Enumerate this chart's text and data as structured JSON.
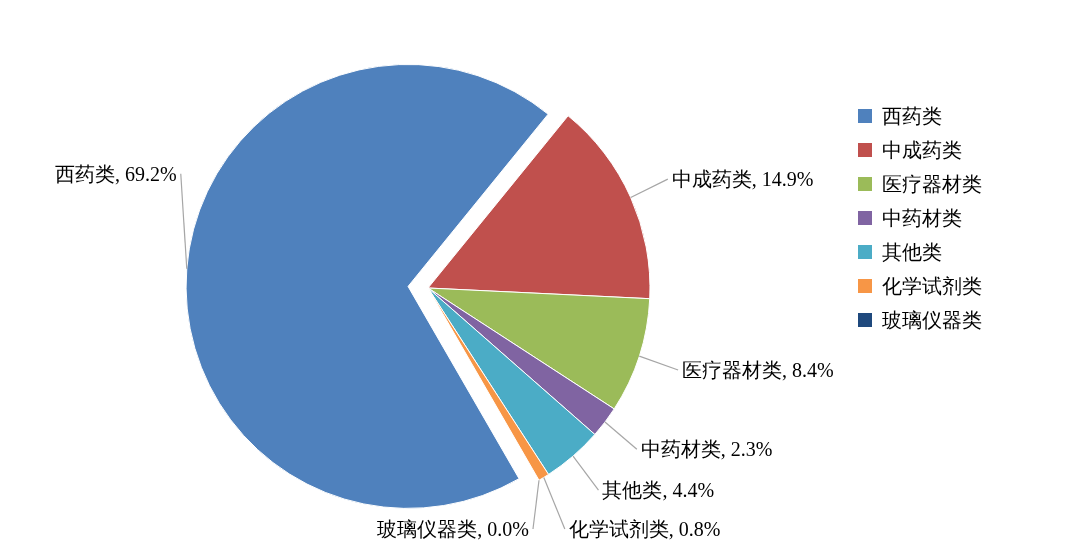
{
  "chart_data": {
    "type": "pie",
    "categories": [
      "西药类",
      "中成药类",
      "医疗器材类",
      "中药材类",
      "其他类",
      "化学试剂类",
      "玻璃仪器类"
    ],
    "values": [
      69.2,
      14.9,
      8.4,
      2.3,
      4.4,
      0.8,
      0.0
    ],
    "value_labels": [
      "西药类, 69.2%",
      "中成药类, 14.9%",
      "医疗器材类, 8.4%",
      "中药材类, 2.3%",
      "其他类, 4.4%",
      "化学试剂类, 0.8%",
      "玻璃仪器类, 0.0%"
    ],
    "colors": [
      "#4f81bd",
      "#c0504d",
      "#9bbb59",
      "#8064a2",
      "#4bacc6",
      "#f79646",
      "#1f497d"
    ],
    "legend": "right"
  }
}
